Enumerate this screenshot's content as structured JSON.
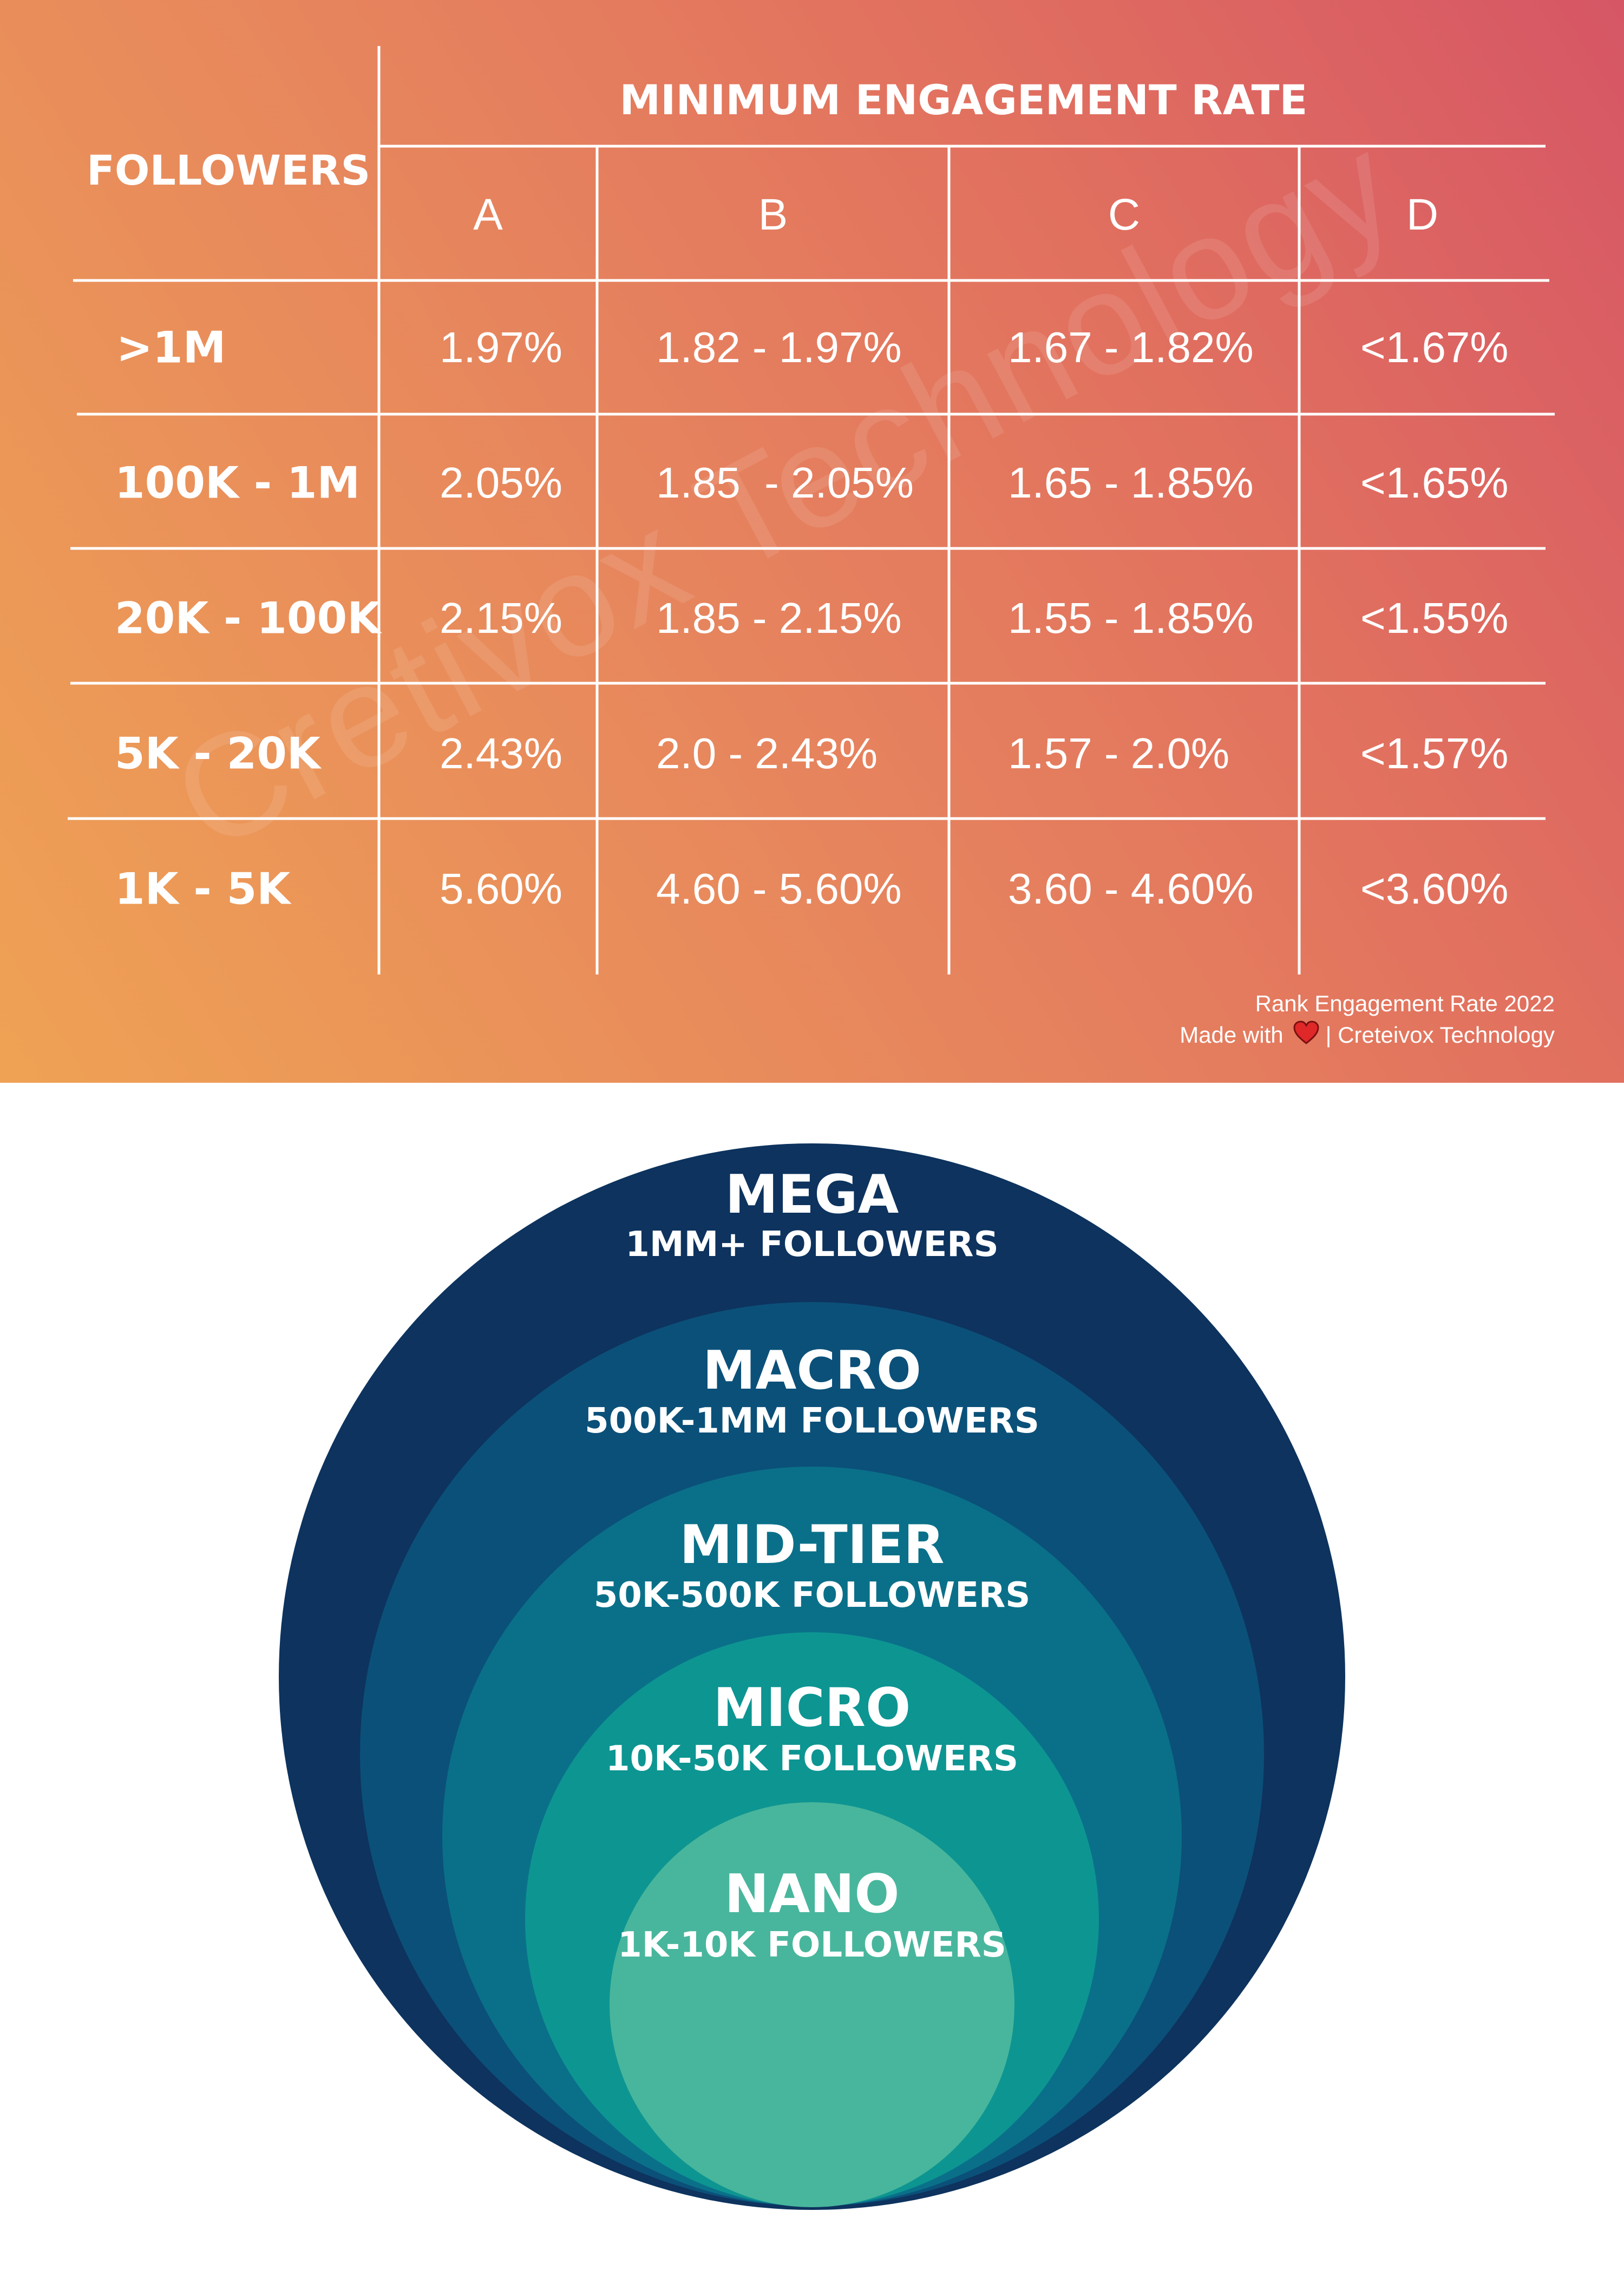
{
  "table": {
    "followers_header": "FOLLOWERS",
    "group_header": "MINIMUM ENGAGEMENT RATE",
    "columns": [
      "A",
      "B",
      "C",
      "D"
    ],
    "rows": [
      {
        "followers": ">1M",
        "cells": [
          "1.97%",
          "1.82 - 1.97%",
          "1.67 - 1.82%",
          "<1.67%"
        ]
      },
      {
        "followers": "100K - 1M",
        "cells": [
          "2.05%",
          "1.85  - 2.05%",
          "1.65 - 1.85%",
          "<1.65%"
        ]
      },
      {
        "followers": "20K - 100K",
        "cells": [
          "2.15%",
          "1.85 - 2.15%",
          "1.55 - 1.85%",
          "<1.55%"
        ]
      },
      {
        "followers": "5K - 20K",
        "cells": [
          "2.43%",
          "2.0 - 2.43%",
          "1.57 - 2.0%",
          "<1.57%"
        ]
      },
      {
        "followers": "1K - 5K",
        "cells": [
          "5.60%",
          "4.60 - 5.60%",
          "3.60 - 4.60%",
          "<3.60%"
        ]
      }
    ]
  },
  "watermark": "Cretivox Technology",
  "footer": {
    "line1": "Rank Engagement Rate 2022",
    "made_with": "Made with",
    "credit": "| Creteivox Technology",
    "heart_color": "#e02828"
  },
  "tiers": [
    {
      "name": "MEGA",
      "followers": "1MM+ FOLLOWERS",
      "color": "#0d335e"
    },
    {
      "name": "MACRO",
      "followers": "500K-1MM FOLLOWERS",
      "color": "#0b5079"
    },
    {
      "name": "MID-TIER",
      "followers": "50K-500K FOLLOWERS",
      "color": "#0a7089"
    },
    {
      "name": "MICRO",
      "followers": "10K-50K FOLLOWERS",
      "color": "#0d9592"
    },
    {
      "name": "NANO",
      "followers": "1K-10K FOLLOWERS",
      "color": "#48b69c"
    }
  ],
  "colors": {
    "gradient_start": "#efa254",
    "gradient_end": "#d65665",
    "grid_line": "#ffffff"
  }
}
